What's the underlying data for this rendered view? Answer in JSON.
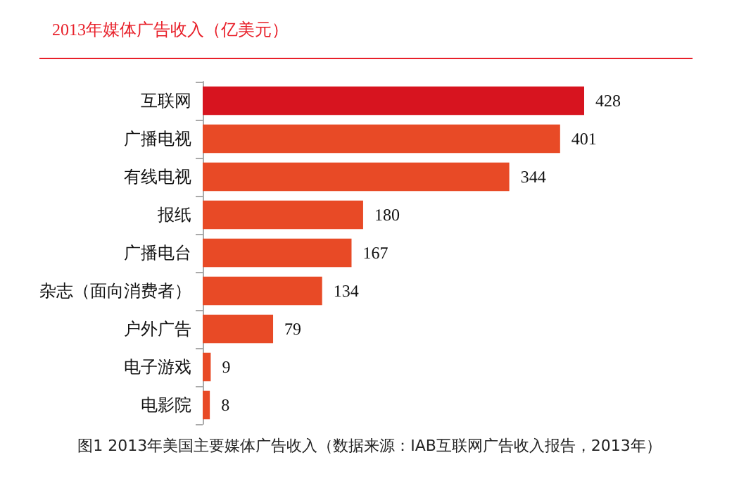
{
  "chart_data": {
    "type": "bar",
    "orientation": "horizontal",
    "title": "2013年媒体广告收入（亿美元）",
    "categories": [
      "互联网",
      "广播电视",
      "有线电视",
      "报纸",
      "广播电台",
      "杂志（面向消费者）",
      "户外广告",
      "电子游戏",
      "电影院"
    ],
    "values": [
      428,
      401,
      344,
      180,
      167,
      134,
      79,
      9,
      8
    ],
    "colors": [
      "#d7141f",
      "#e84a26",
      "#e84a26",
      "#e84a26",
      "#e84a26",
      "#e84a26",
      "#e84a26",
      "#e84a26",
      "#e84a26"
    ],
    "data_labels": true,
    "annotations": [
      "图1  2013年美国主要媒体广告收入（数据来源：IAB互联网广告收入报告，2013年）"
    ]
  }
}
